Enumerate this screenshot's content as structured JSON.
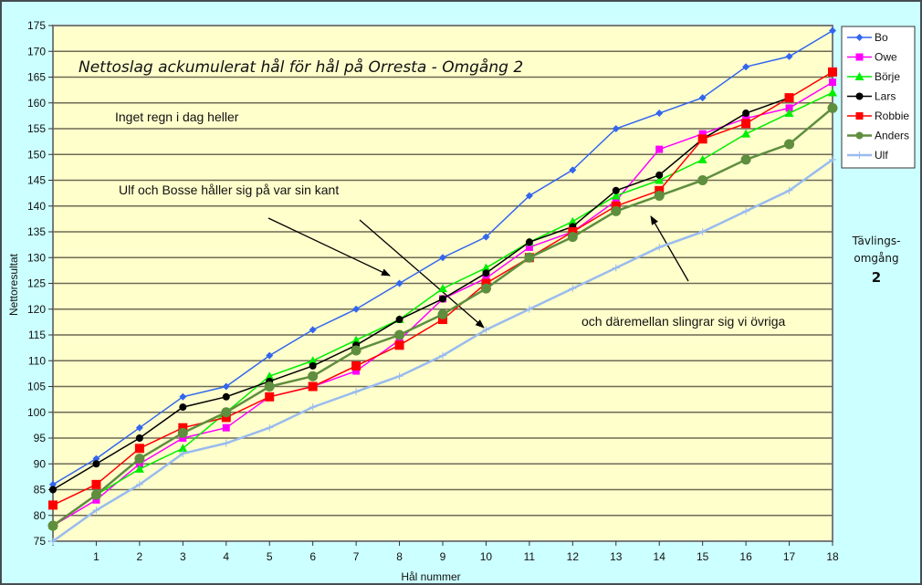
{
  "chart_data": {
    "type": "line",
    "title": "Nettoslag ackumulerat hål för hål på Orresta - Omgång 2",
    "xlabel": "Hål nummer",
    "ylabel": "Nettoresultat",
    "xlim": [
      0,
      18
    ],
    "ylim": [
      75,
      175
    ],
    "ytick_step": 5,
    "grid": "horizontal",
    "legend_position": "right",
    "x": [
      0,
      1,
      2,
      3,
      4,
      5,
      6,
      7,
      8,
      9,
      10,
      11,
      12,
      13,
      14,
      15,
      16,
      17,
      18
    ],
    "x_tick_labels": [
      "1",
      "2",
      "3",
      "4",
      "5",
      "6",
      "7",
      "8",
      "9",
      "10",
      "11",
      "12",
      "13",
      "14",
      "15",
      "16",
      "17",
      "18"
    ],
    "y_tick_labels": [
      "75",
      "80",
      "85",
      "90",
      "95",
      "100",
      "105",
      "110",
      "115",
      "120",
      "125",
      "130",
      "135",
      "140",
      "145",
      "150",
      "155",
      "160",
      "165",
      "170",
      "175"
    ],
    "series": [
      {
        "name": "Bo",
        "color": "#3366ee",
        "marker": "diamond",
        "values": [
          86,
          91,
          97,
          103,
          105,
          111,
          116,
          120,
          125,
          130,
          134,
          142,
          147,
          155,
          158,
          161,
          167,
          169,
          174
        ]
      },
      {
        "name": "Owe",
        "color": "#ff00ff",
        "marker": "square",
        "values": [
          78,
          83,
          90,
          95,
          97,
          103,
          105,
          108,
          114,
          122,
          126,
          132,
          135,
          141,
          151,
          154,
          157,
          159,
          164
        ]
      },
      {
        "name": "Börje",
        "color": "#00ee00",
        "marker": "triangle",
        "values": [
          78,
          84,
          89,
          93,
          100,
          107,
          110,
          114,
          118,
          124,
          128,
          133,
          137,
          142,
          145,
          149,
          154,
          158,
          162
        ]
      },
      {
        "name": "Lars",
        "color": "#000000",
        "marker": "circle",
        "values": [
          85,
          90,
          95,
          101,
          103,
          106,
          109,
          113,
          118,
          122,
          127,
          133,
          136,
          143,
          146,
          153,
          158,
          161,
          null
        ]
      },
      {
        "name": "Robbie",
        "color": "#ff0000",
        "marker": "bigsquare",
        "values": [
          82,
          86,
          93,
          97,
          99,
          103,
          105,
          109,
          113,
          118,
          125,
          130,
          135,
          140,
          143,
          153,
          156,
          161,
          166
        ]
      },
      {
        "name": "Anders",
        "color": "#5e8e3e",
        "marker": "bigcircle",
        "values": [
          78,
          84,
          91,
          96,
          100,
          105,
          107,
          112,
          115,
          119,
          124,
          130,
          134,
          139,
          142,
          145,
          149,
          152,
          159
        ]
      },
      {
        "name": "Ulf",
        "color": "#99bbee",
        "marker": "plus",
        "values": [
          75,
          81,
          86,
          92,
          94,
          97,
          101,
          104,
          107,
          111,
          116,
          120,
          124,
          128,
          132,
          135,
          139,
          143,
          149
        ]
      }
    ],
    "annotations": [
      {
        "text": "Inget regn i dag heller"
      },
      {
        "text": "Ulf och Bosse håller sig på var sin kant"
      },
      {
        "text": "och däremellan slingrar sig vi övriga"
      }
    ]
  },
  "side_label": {
    "line1": "Tävlings-",
    "line2": "omgång",
    "number": "2"
  },
  "colors": {
    "plot_bg": "#ffffcc",
    "chart_bg": "#ccffff",
    "grid": "#6e6a55"
  }
}
